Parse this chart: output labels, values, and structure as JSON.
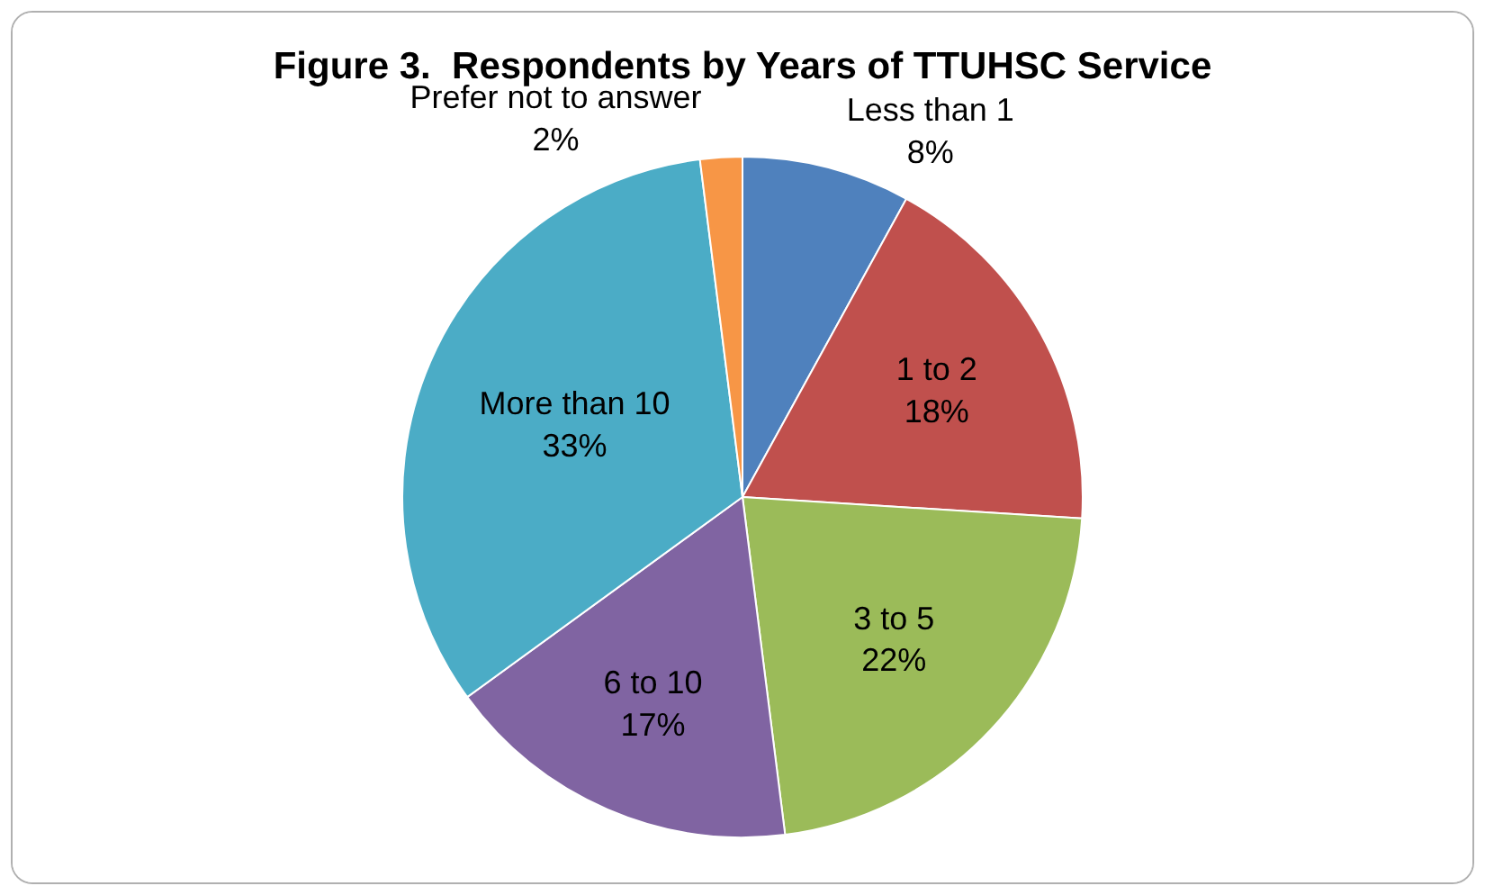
{
  "chart_data": {
    "type": "pie",
    "title": "Figure 3.  Respondents by Years of TTUHSC Service",
    "categories": [
      "Less than 1",
      "1 to 2",
      "3 to 5",
      "6 to 10",
      "More than 10",
      "Prefer not to answer"
    ],
    "values": [
      8,
      18,
      22,
      17,
      33,
      2
    ],
    "value_labels": [
      "8%",
      "18%",
      "22%",
      "17%",
      "33%",
      "2%"
    ],
    "colors": [
      "#4f81bd",
      "#c0504d",
      "#9bbb59",
      "#8064a2",
      "#4bacc6",
      "#f79646"
    ],
    "legend": false
  }
}
